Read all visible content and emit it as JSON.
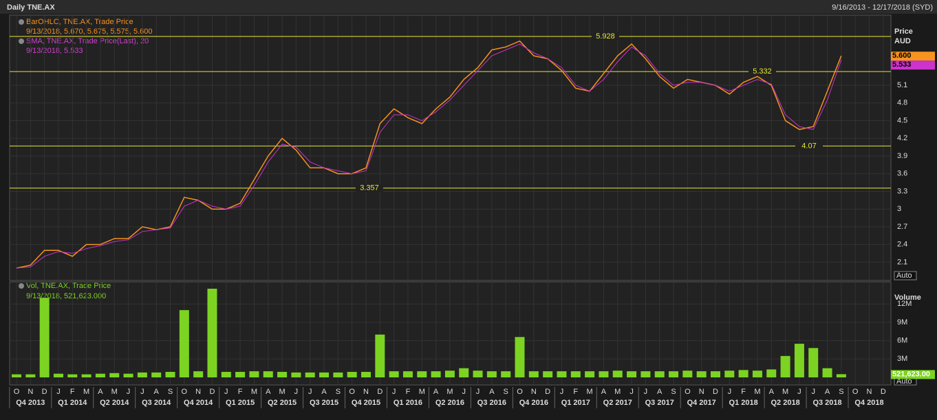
{
  "header": {
    "title": "Daily TNE.AX",
    "range": "9/16/2013 - 12/17/2018 (SYD)"
  },
  "chart_data": [
    {
      "type": "line",
      "panel": "price",
      "legend": [
        "BarOHLC, TNE.AX, Trade Price",
        "9/13/2018, 5.670, 5.675, 5.575, 5.600",
        "SMA, TNE.AX, Trade Price(Last),  20",
        "9/13/2018, 5.533"
      ],
      "axis_title": [
        "Price",
        "AUD"
      ],
      "autoscale": "Auto",
      "categories": [
        "O",
        "N",
        "D",
        "J",
        "F",
        "M",
        "A",
        "M",
        "J",
        "J",
        "A",
        "S",
        "O",
        "N",
        "D",
        "J",
        "F",
        "M",
        "A",
        "M",
        "J",
        "J",
        "A",
        "S",
        "O",
        "N",
        "D",
        "J",
        "F",
        "M",
        "A",
        "M",
        "J",
        "J",
        "A",
        "S",
        "O",
        "N",
        "D",
        "J",
        "F",
        "M",
        "A",
        "M",
        "J",
        "J",
        "A",
        "S",
        "O",
        "N",
        "D",
        "J",
        "F",
        "M",
        "A",
        "M",
        "J",
        "J",
        "A",
        "S",
        "O",
        "N",
        "D"
      ],
      "quarters": [
        "Q4 2013",
        "Q1 2014",
        "Q2 2014",
        "Q3 2014",
        "Q4 2014",
        "Q1 2015",
        "Q2 2015",
        "Q3 2015",
        "Q4 2015",
        "Q1 2016",
        "Q2 2016",
        "Q3 2016",
        "Q4 2016",
        "Q1 2017",
        "Q2 2017",
        "Q3 2017",
        "Q4 2017",
        "Q1 2018",
        "Q2 2018",
        "Q3 2018",
        "Q4 2018"
      ],
      "ylim": [
        1.79,
        6.29
      ],
      "yticks": [
        2.1,
        2.4,
        2.7,
        3,
        3.3,
        3.6,
        3.9,
        4.2,
        4.5,
        4.8,
        5.1
      ],
      "grid": true,
      "hlines": [
        5.928,
        5.332,
        4.07,
        3.357
      ],
      "hline_color": "#e8e830",
      "series": [
        {
          "name": "BarOHLC",
          "color": "#f7931e",
          "values": [
            2.0,
            2.05,
            2.3,
            2.3,
            2.2,
            2.4,
            2.4,
            2.5,
            2.5,
            2.7,
            2.65,
            2.7,
            3.2,
            3.15,
            3.0,
            3.0,
            3.1,
            3.5,
            3.9,
            4.2,
            4.0,
            3.7,
            3.7,
            3.6,
            3.6,
            3.7,
            4.45,
            4.7,
            4.55,
            4.45,
            4.7,
            4.9,
            5.2,
            5.4,
            5.7,
            5.75,
            5.85,
            5.6,
            5.55,
            5.35,
            5.05,
            5.0,
            5.3,
            5.6,
            5.8,
            5.55,
            5.25,
            5.05,
            5.2,
            5.15,
            5.1,
            4.95,
            5.15,
            5.25,
            5.1,
            4.5,
            4.35,
            4.4,
            5.0,
            5.6,
            null,
            null,
            null
          ],
          "value_labels": [
            null,
            null,
            null,
            null,
            null,
            null,
            null,
            null,
            null,
            null,
            null,
            null,
            null,
            null,
            null,
            null,
            null,
            null,
            null,
            null,
            null,
            null,
            null,
            null,
            null,
            null,
            null,
            null,
            null,
            null,
            null,
            null,
            null,
            null,
            null,
            null,
            null,
            null,
            null,
            null,
            null,
            null,
            null,
            null,
            null,
            null,
            null,
            null,
            null,
            null,
            null,
            null,
            null,
            null,
            null,
            null,
            null,
            null,
            null,
            "5.600",
            null,
            null,
            null
          ]
        },
        {
          "name": "SMA",
          "color": "#cc33cc",
          "values": [
            2.0,
            2.02,
            2.2,
            2.28,
            2.25,
            2.33,
            2.38,
            2.45,
            2.48,
            2.62,
            2.65,
            2.68,
            3.05,
            3.15,
            3.05,
            3.0,
            3.05,
            3.4,
            3.8,
            4.1,
            4.05,
            3.8,
            3.7,
            3.65,
            3.6,
            3.65,
            4.3,
            4.6,
            4.6,
            4.5,
            4.65,
            4.85,
            5.1,
            5.35,
            5.6,
            5.7,
            5.8,
            5.65,
            5.55,
            5.4,
            5.1,
            5.0,
            5.2,
            5.5,
            5.75,
            5.6,
            5.3,
            5.1,
            5.15,
            5.15,
            5.1,
            5.0,
            5.1,
            5.2,
            5.12,
            4.6,
            4.4,
            4.35,
            4.85,
            5.533,
            null,
            null,
            null
          ]
        }
      ]
    },
    {
      "type": "bar",
      "panel": "volume",
      "legend": [
        "Vol, TNE.AX, Trade Price",
        "9/13/2018, 521,623.000"
      ],
      "axis_title": "Volume",
      "autoscale": "Auto",
      "color": "#7cd321",
      "ylim": [
        0,
        15.4
      ],
      "yticks": [
        {
          "value": 3,
          "label": "3M"
        },
        {
          "value": 6,
          "label": "6M"
        },
        {
          "value": 9,
          "label": "9M"
        },
        {
          "value": 12,
          "label": "12M"
        }
      ],
      "values": [
        0.5,
        0.5,
        13.0,
        0.6,
        0.5,
        0.5,
        0.6,
        0.7,
        0.6,
        0.8,
        0.8,
        0.9,
        11.0,
        1.0,
        14.5,
        0.9,
        0.9,
        1.0,
        1.0,
        0.9,
        0.8,
        0.8,
        0.8,
        0.8,
        0.9,
        0.9,
        7.0,
        1.0,
        1.0,
        1.0,
        1.0,
        1.1,
        1.5,
        1.1,
        1.0,
        1.0,
        6.6,
        1.0,
        1.0,
        1.0,
        1.0,
        1.0,
        1.0,
        1.1,
        1.0,
        1.0,
        1.0,
        1.0,
        1.1,
        1.0,
        1.0,
        1.1,
        1.2,
        1.1,
        1.3,
        3.5,
        5.5,
        4.8,
        1.5,
        0.521623,
        null,
        null,
        null
      ],
      "value_labels": [
        null,
        null,
        null,
        null,
        null,
        null,
        null,
        null,
        null,
        null,
        null,
        null,
        null,
        null,
        null,
        null,
        null,
        null,
        null,
        null,
        null,
        null,
        null,
        null,
        null,
        null,
        null,
        null,
        null,
        null,
        null,
        null,
        null,
        null,
        null,
        null,
        null,
        null,
        null,
        null,
        null,
        null,
        null,
        null,
        null,
        null,
        null,
        null,
        null,
        null,
        null,
        null,
        null,
        null,
        null,
        null,
        null,
        null,
        null,
        "521,623.00",
        null,
        null,
        null
      ]
    }
  ]
}
